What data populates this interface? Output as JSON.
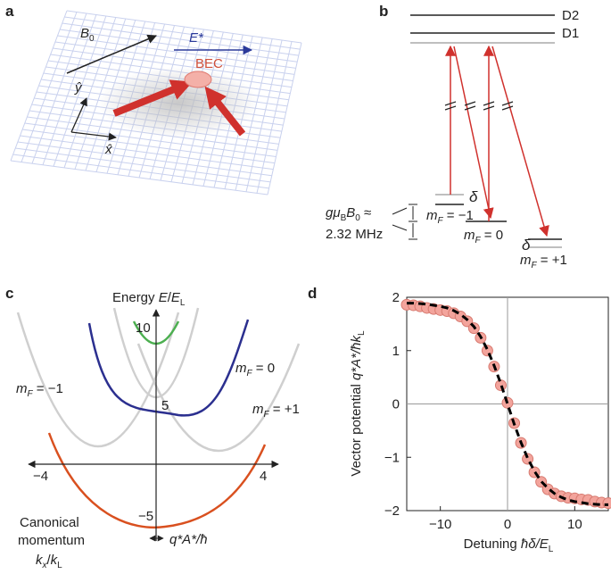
{
  "panels": {
    "a": {
      "label": "a",
      "b0": [
        "B",
        "0"
      ],
      "e_star": "E*",
      "bec": "BEC",
      "y_hat": "ŷ",
      "x_hat": "x̂"
    },
    "b": {
      "label": "b",
      "d2": "D2",
      "d1": "D1",
      "delta1": "δ",
      "delta2": "δ",
      "mf_minus": [
        "m",
        "F",
        " = −1"
      ],
      "mf_zero": [
        "m",
        "F",
        " = 0"
      ],
      "mf_plus": [
        "m",
        "F",
        " = +1"
      ],
      "zeeman": [
        "gμ",
        "B",
        "B",
        "0",
        " ≈"
      ],
      "zeeman_value": "2.32 MHz"
    },
    "c": {
      "label": "c",
      "energy": [
        "Energy ",
        "E",
        "/",
        "E",
        "L"
      ],
      "xticks": [
        "−4",
        "4"
      ],
      "yticks": [
        "10",
        "5",
        "−5"
      ],
      "mf_zero": [
        "m",
        "F",
        " = 0"
      ],
      "mf_minus": [
        "m",
        "F",
        " = −1"
      ],
      "mf_plus": [
        "m",
        "F",
        " = +1"
      ],
      "canonical": [
        "Canonical",
        "momentum",
        "k",
        "x",
        "/",
        "k",
        "L"
      ],
      "shift": "q*A*/ħ"
    },
    "d": {
      "label": "d",
      "type": "scatter",
      "xlabel": [
        "Detuning ",
        "ħδ/E",
        "L"
      ],
      "ylabel": [
        "Vector potential ",
        "q*A*/ħk",
        "L"
      ],
      "xlim": [
        -15,
        15
      ],
      "ylim": [
        -2,
        2
      ],
      "xticks": [
        {
          "value": -10,
          "label": "−10"
        },
        0,
        10
      ],
      "yticks": [
        {
          "value": -2,
          "label": "−2"
        },
        {
          "value": -1,
          "label": "−1"
        },
        0,
        1,
        2
      ],
      "points": {
        "color": "#f3a49c",
        "x": [
          -15,
          -14,
          -13,
          -12,
          -11,
          -10,
          -9,
          -8,
          -7,
          -6,
          -5,
          -4,
          -3,
          -2,
          -1,
          0,
          1,
          2,
          3,
          4,
          5,
          6,
          7,
          8,
          9,
          10,
          11,
          12,
          13,
          14,
          15
        ],
        "y": [
          1.86,
          1.85,
          1.83,
          1.8,
          1.78,
          1.76,
          1.74,
          1.7,
          1.64,
          1.55,
          1.42,
          1.24,
          1.0,
          0.7,
          0.35,
          0.02,
          -0.36,
          -0.73,
          -1.03,
          -1.28,
          -1.46,
          -1.6,
          -1.68,
          -1.73,
          -1.76,
          -1.77,
          -1.79,
          -1.8,
          -1.83,
          -1.85,
          -1.86
        ]
      },
      "fit": {
        "color": "#000000",
        "x": [
          -15,
          -14,
          -13,
          -12,
          -11,
          -10,
          -9,
          -8,
          -7,
          -6,
          -5,
          -4,
          -3,
          -2,
          -1,
          0,
          1,
          2,
          3,
          4,
          5,
          6,
          7,
          8,
          9,
          10,
          11,
          12,
          13,
          14,
          15
        ],
        "y": [
          1.89,
          1.89,
          1.88,
          1.87,
          1.85,
          1.83,
          1.8,
          1.75,
          1.68,
          1.58,
          1.45,
          1.26,
          1.02,
          0.72,
          0.38,
          0,
          -0.38,
          -0.72,
          -1.02,
          -1.26,
          -1.45,
          -1.58,
          -1.68,
          -1.75,
          -1.8,
          -1.83,
          -1.85,
          -1.87,
          -1.88,
          -1.89,
          -1.89
        ]
      }
    }
  }
}
